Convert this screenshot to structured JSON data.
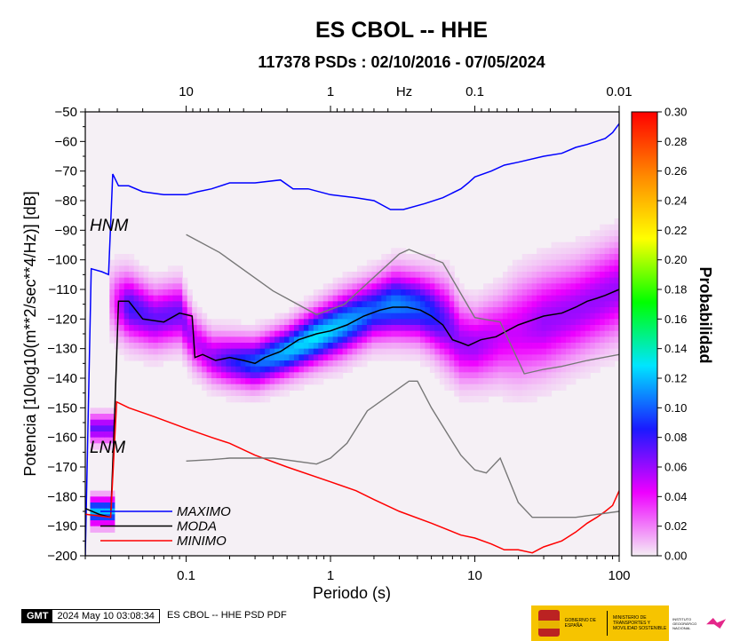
{
  "title": "ES CBOL -- HHE",
  "subtitle": "117378 PSDs : 02/10/2016 - 07/05/2024",
  "chart_data": {
    "type": "heatmap",
    "title": "ES CBOL -- HHE",
    "subtitle": "117378 PSDs : 02/10/2016 - 07/05/2024",
    "xlabel": "Periodo (s)",
    "ylabel": "Potencia [10log10(m**2/sec**4/Hz)] [dB]",
    "x_scale": "log",
    "xlim": [
      0.02,
      100
    ],
    "ylim": [
      -200,
      -50
    ],
    "x_ticks": [
      0.1,
      1,
      10,
      100
    ],
    "x_tick_labels": [
      "0.1",
      "1",
      "10",
      "100"
    ],
    "y_ticks": [
      -50,
      -60,
      -70,
      -80,
      -90,
      -100,
      -110,
      -120,
      -130,
      -140,
      -150,
      -160,
      -170,
      -180,
      -190,
      -200
    ],
    "y_tick_labels": [
      "−50",
      "−60",
      "−70",
      "−80",
      "−90",
      "−100",
      "−110",
      "−120",
      "−130",
      "−140",
      "−150",
      "−160",
      "−170",
      "−180",
      "−190",
      "−200"
    ],
    "top_axis_label": "Hz",
    "top_ticks_hz": [
      10,
      1,
      0.1,
      0.01
    ],
    "top_tick_labels": [
      "10",
      "1",
      "0.1",
      "0.01"
    ],
    "colorbar": {
      "label": "Probabilidad",
      "range": [
        0,
        0.3
      ],
      "ticks": [
        0.3,
        0.28,
        0.26,
        0.24,
        0.22,
        0.2,
        0.18,
        0.16,
        0.14,
        0.12,
        0.1,
        0.08,
        0.06,
        0.04,
        0.02,
        0.0
      ],
      "tick_labels": [
        "0.30",
        "0.28",
        "0.26",
        "0.24",
        "0.22",
        "0.20",
        "0.18",
        "0.16",
        "0.14",
        "0.12",
        "0.10",
        "0.08",
        "0.06",
        "0.04",
        "0.02",
        "0.00"
      ],
      "colors": [
        "#f4eef4",
        "#ee00ff",
        "#1a1aff",
        "#00e5ff",
        "#00ff00",
        "#ffff00",
        "#ff8800",
        "#ff0000"
      ]
    },
    "model_labels": {
      "high": "HNM",
      "low": "LNM"
    },
    "legend": {
      "placement": "bottom-left",
      "entries": [
        {
          "name": "MAXIMO",
          "color": "#0000ff"
        },
        {
          "name": "MODA",
          "color": "#000000"
        },
        {
          "name": "MINIMO",
          "color": "#ff0000"
        }
      ]
    },
    "series": [
      {
        "name": "MAXIMO",
        "color": "#0000ff",
        "x": [
          0.02,
          0.022,
          0.026,
          0.029,
          0.031,
          0.034,
          0.04,
          0.05,
          0.07,
          0.1,
          0.12,
          0.15,
          0.2,
          0.3,
          0.45,
          0.55,
          0.7,
          1.0,
          1.5,
          2.0,
          2.6,
          3.2,
          4.5,
          6,
          8,
          9,
          10,
          13,
          16,
          20,
          30,
          40,
          50,
          60,
          80,
          90,
          100
        ],
        "y": [
          -200,
          -103,
          -104,
          -105,
          -71,
          -75,
          -75,
          -77,
          -78,
          -78,
          -77,
          -76,
          -74,
          -74,
          -73,
          -76,
          -76,
          -78,
          -79,
          -80,
          -83,
          -83,
          -81,
          -79,
          -76,
          -74,
          -72,
          -70,
          -68,
          -67,
          -65,
          -64,
          -62,
          -61,
          -59,
          -57,
          -54
        ]
      },
      {
        "name": "MODA",
        "color": "#000000",
        "x": [
          0.02,
          0.025,
          0.03,
          0.032,
          0.034,
          0.04,
          0.05,
          0.07,
          0.09,
          0.11,
          0.115,
          0.13,
          0.16,
          0.2,
          0.25,
          0.3,
          0.35,
          0.45,
          0.6,
          0.8,
          1.0,
          1.3,
          1.7,
          2.2,
          2.7,
          3.4,
          4.2,
          5.0,
          6.0,
          7.0,
          8.0,
          9.0,
          11,
          14,
          20,
          30,
          40,
          50,
          60,
          70,
          80,
          100
        ],
        "y": [
          -184,
          -186,
          -187,
          -151,
          -114,
          -114,
          -120,
          -121,
          -118,
          -119,
          -133,
          -132,
          -134,
          -133,
          -134,
          -135,
          -133,
          -131,
          -127,
          -125,
          -124,
          -122,
          -119,
          -117,
          -116,
          -116,
          -117,
          -119,
          -122,
          -127,
          -128,
          -129,
          -127,
          -126,
          -122,
          -119,
          -118,
          -116,
          -114,
          -113,
          -112,
          -110
        ]
      },
      {
        "name": "MINIMO",
        "color": "#ff0000",
        "x": [
          0.02,
          0.03,
          0.033,
          0.04,
          0.06,
          0.1,
          0.15,
          0.2,
          0.3,
          0.5,
          1.0,
          1.5,
          2.0,
          3.0,
          5.0,
          8.0,
          10,
          13,
          16,
          20,
          25,
          30,
          40,
          50,
          60,
          70,
          80,
          90,
          100
        ],
        "y": [
          -186,
          -187,
          -148,
          -150,
          -153,
          -157,
          -160,
          -162,
          -166,
          -170,
          -175,
          -178,
          -181,
          -185,
          -189,
          -193,
          -194,
          -196,
          -198,
          -198,
          -199,
          -197,
          -195,
          -192,
          -189,
          -187,
          -185,
          -183,
          -178
        ]
      },
      {
        "name": "",
        "color": "#777777",
        "x": [
          0.1,
          0.17,
          0.4,
          0.8,
          1.25,
          3.0,
          3.5,
          6.0,
          10,
          15,
          22,
          30,
          40,
          60,
          100
        ],
        "y": [
          -91.5,
          -97.5,
          -110.5,
          -118.5,
          -115,
          -98,
          -96.5,
          -101,
          -119.5,
          -121,
          -138.5,
          -137,
          -136,
          -134,
          -132
        ]
      },
      {
        "name": "",
        "color": "#777777",
        "x": [
          0.1,
          0.15,
          0.2,
          0.4,
          0.8,
          1.0,
          1.3,
          1.8,
          3.5,
          4.0,
          5.0,
          6.5,
          8.0,
          10,
          12,
          15,
          20,
          25,
          40,
          50,
          100
        ],
        "y": [
          -168,
          -167.5,
          -167,
          -167,
          -169,
          -167,
          -162,
          -151,
          -141,
          -141,
          -150,
          -159,
          -166,
          -171,
          -172,
          -167,
          -182,
          -187,
          -187,
          -187,
          -185
        ]
      }
    ],
    "density_band": {
      "x": [
        0.03,
        0.04,
        0.06,
        0.09,
        0.115,
        0.15,
        0.2,
        0.3,
        0.5,
        0.8,
        1.2,
        2.0,
        2.8,
        4.0,
        5.0,
        6.5,
        8.0,
        10,
        15,
        20,
        30,
        50,
        100
      ],
      "center": [
        -114,
        -116,
        -120,
        -118,
        -128,
        -133,
        -134,
        -135,
        -131,
        -126,
        -122,
        -117,
        -115,
        -116,
        -118,
        -122,
        -128,
        -129,
        -126,
        -124,
        -121,
        -117,
        -110
      ],
      "half_width": [
        12,
        12,
        11,
        11,
        10,
        9,
        9,
        9,
        9,
        10,
        11,
        11,
        12,
        12,
        13,
        15,
        14,
        13,
        15,
        18,
        18,
        17,
        17
      ],
      "peak_probability": [
        0.02,
        0.08,
        0.07,
        0.07,
        0.05,
        0.06,
        0.08,
        0.1,
        0.12,
        0.13,
        0.12,
        0.1,
        0.11,
        0.1,
        0.09,
        0.07,
        0.06,
        0.06,
        0.05,
        0.05,
        0.06,
        0.06,
        0.06
      ]
    }
  },
  "footer": {
    "gmt_logo": "GMT",
    "timestamp": "2024 May 10 03:08:34",
    "note": "ES CBOL -- HHE PSD PDF",
    "logo_gov_text": "GOBIERNO DE ESPAÑA",
    "logo_ministry_text": "MINISTERIO DE TRANSPORTES Y MOVILIDAD SOSTENIBLE",
    "logo_ign_text": "INSTITUTO GEOGRÁFICO NACIONAL"
  }
}
